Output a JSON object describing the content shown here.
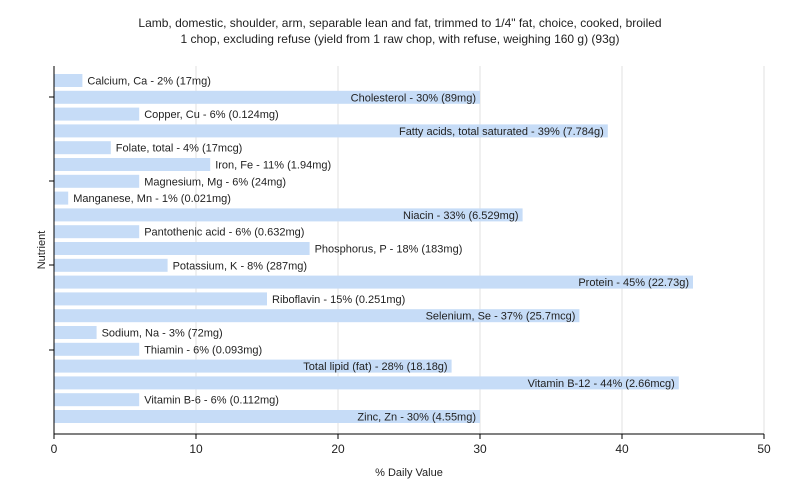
{
  "chart_data": {
    "type": "bar",
    "orientation": "horizontal",
    "title_line1": "Lamb, domestic, shoulder, arm, separable lean and fat, trimmed to 1/4\" fat, choice, cooked, broiled",
    "title_line2": "1 chop, excluding refuse (yield from 1 raw chop, with refuse, weighing 160 g) (93g)",
    "xlabel": "% Daily Value",
    "ylabel": "Nutrient",
    "xlim": [
      0,
      50
    ],
    "xticks": [
      0,
      10,
      20,
      30,
      40,
      50
    ],
    "grid": true,
    "bar_color": "#c6dcf7",
    "categories": [
      "Calcium, Ca",
      "Cholesterol",
      "Copper, Cu",
      "Fatty acids, total saturated",
      "Folate, total",
      "Iron, Fe",
      "Magnesium, Mg",
      "Manganese, Mn",
      "Niacin",
      "Pantothenic acid",
      "Phosphorus, P",
      "Potassium, K",
      "Protein",
      "Riboflavin",
      "Selenium, Se",
      "Sodium, Na",
      "Thiamin",
      "Total lipid (fat)",
      "Vitamin B-12",
      "Vitamin B-6",
      "Zinc, Zn"
    ],
    "values": [
      2,
      30,
      6,
      39,
      4,
      11,
      6,
      1,
      33,
      6,
      18,
      8,
      45,
      15,
      37,
      3,
      6,
      28,
      44,
      6,
      30
    ],
    "labels": [
      "Calcium, Ca - 2% (17mg)",
      "Cholesterol - 30% (89mg)",
      "Copper, Cu - 6% (0.124mg)",
      "Fatty acids, total saturated - 39% (7.784g)",
      "Folate, total - 4% (17mcg)",
      "Iron, Fe - 11% (1.94mg)",
      "Magnesium, Mg - 6% (24mg)",
      "Manganese, Mn - 1% (0.021mg)",
      "Niacin - 33% (6.529mg)",
      "Pantothenic acid - 6% (0.632mg)",
      "Phosphorus, P - 18% (183mg)",
      "Potassium, K - 8% (287mg)",
      "Protein - 45% (22.73g)",
      "Riboflavin - 15% (0.251mg)",
      "Selenium, Se - 37% (25.7mcg)",
      "Sodium, Na - 3% (72mg)",
      "Thiamin - 6% (0.093mg)",
      "Total lipid (fat) - 28% (18.18g)",
      "Vitamin B-12 - 44% (2.66mcg)",
      "Vitamin B-6 - 6% (0.112mg)",
      "Zinc, Zn - 30% (4.55mg)"
    ]
  }
}
